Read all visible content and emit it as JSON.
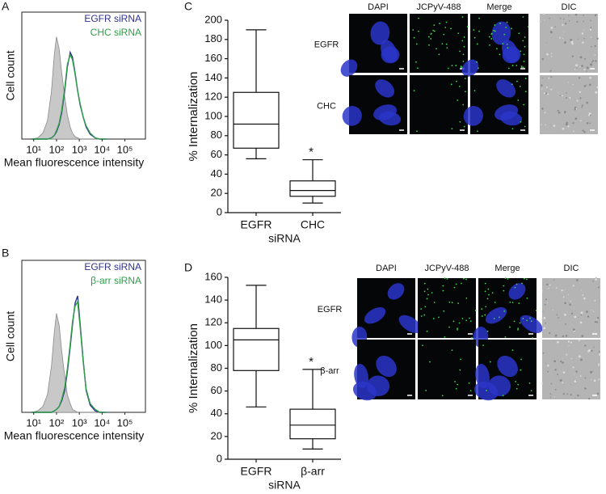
{
  "panel_labels": [
    "A",
    "B",
    "C",
    "D"
  ],
  "chart_data": [
    {
      "type": "histogram_overlay",
      "ylabel": "Cell count",
      "xlabel": "Mean fluorescence intensity",
      "xscale": "log",
      "xlim": [
        3,
        800000
      ],
      "ylim": [
        0,
        100
      ],
      "xticks": [
        {
          "value": 10,
          "label": "10¹"
        },
        {
          "value": 100,
          "label": "10²"
        },
        {
          "value": 1000,
          "label": "10³"
        },
        {
          "value": 10000,
          "label": "10⁴"
        },
        {
          "value": 100000,
          "label": "10⁵"
        }
      ],
      "legend": "upper right",
      "x": [
        8,
        15,
        25,
        40,
        60,
        80,
        100,
        130,
        170,
        230,
        300,
        400,
        500,
        650,
        850,
        1100,
        1500,
        2000,
        3000,
        5000,
        8000,
        15000
      ],
      "series": [
        {
          "color": "#c8c8c8",
          "values": [
            0,
            1,
            5,
            15,
            40,
            70,
            85,
            75,
            55,
            35,
            20,
            10,
            5,
            2,
            1,
            0,
            0,
            0,
            0,
            0,
            0,
            0
          ]
        },
        {
          "name": "EGFR siRNA",
          "color": "#2e3192",
          "values": [
            0,
            0,
            0,
            0,
            1,
            3,
            6,
            12,
            22,
            40,
            60,
            72,
            68,
            55,
            40,
            28,
            18,
            10,
            4,
            1,
            0,
            0
          ]
        },
        {
          "name": "CHC siRNA",
          "color": "#2e9e48",
          "values": [
            0,
            0,
            0,
            0,
            1,
            3,
            7,
            13,
            24,
            42,
            62,
            70,
            66,
            54,
            40,
            29,
            18,
            11,
            5,
            1,
            0,
            0
          ]
        }
      ]
    },
    {
      "type": "histogram_overlay",
      "ylabel": "Cell count",
      "xlabel": "Mean fluorescence intensity",
      "xscale": "log",
      "xlim": [
        3,
        800000
      ],
      "ylim": [
        0,
        100
      ],
      "xticks": [
        {
          "value": 10,
          "label": "10¹"
        },
        {
          "value": 100,
          "label": "10²"
        },
        {
          "value": 1000,
          "label": "10³"
        },
        {
          "value": 10000,
          "label": "10⁴"
        },
        {
          "value": 100000,
          "label": "10⁵"
        }
      ],
      "legend": "upper right",
      "x": [
        8,
        15,
        25,
        40,
        60,
        80,
        100,
        130,
        170,
        230,
        300,
        400,
        500,
        650,
        850,
        1100,
        1500,
        2000,
        3000,
        5000,
        8000,
        15000
      ],
      "series": [
        {
          "color": "#c8c8c8",
          "values": [
            0,
            1,
            4,
            12,
            32,
            55,
            68,
            60,
            42,
            25,
            12,
            6,
            2,
            1,
            0,
            0,
            0,
            0,
            0,
            0,
            0,
            0
          ]
        },
        {
          "name": "EGFR siRNA",
          "color": "#2e3192",
          "values": [
            0,
            0,
            0,
            0,
            0,
            1,
            2,
            4,
            8,
            15,
            28,
            45,
            60,
            75,
            80,
            60,
            35,
            15,
            5,
            1,
            0,
            0
          ]
        },
        {
          "name": "β-arr siRNA",
          "color": "#2e9e48",
          "values": [
            0,
            0,
            0,
            0,
            0,
            1,
            2,
            4,
            9,
            17,
            30,
            47,
            62,
            73,
            76,
            58,
            34,
            16,
            6,
            2,
            0,
            0
          ]
        }
      ]
    },
    {
      "type": "box",
      "ylabel": "% Internalization",
      "xlabel": "siRNA",
      "categories": [
        "EGFR",
        "CHC"
      ],
      "ylim": [
        0,
        200
      ],
      "yticks": [
        0,
        20,
        40,
        60,
        80,
        100,
        120,
        140,
        160,
        180,
        200
      ],
      "boxes": [
        {
          "min": 56,
          "q1": 67,
          "median": 92,
          "q3": 125,
          "max": 190
        },
        {
          "min": 10,
          "q1": 17,
          "median": 23,
          "q3": 33,
          "max": 55
        }
      ],
      "marks_above": [
        null,
        "*"
      ]
    },
    {
      "type": "box",
      "ylabel": "% Internalization",
      "xlabel": "siRNA",
      "categories": [
        "EGFR",
        "β-arr"
      ],
      "ylim": [
        0,
        160
      ],
      "yticks": [
        0,
        20,
        40,
        60,
        80,
        100,
        120,
        140,
        160
      ],
      "boxes": [
        {
          "min": 46,
          "q1": 78,
          "median": 105,
          "q3": 115,
          "max": 153
        },
        {
          "min": 9,
          "q1": 18,
          "median": 30,
          "q3": 44,
          "max": 79
        }
      ],
      "marks_above": [
        null,
        "*"
      ]
    }
  ],
  "image_panels": [
    {
      "columns": [
        "DAPI",
        "JCPyV-488",
        "Merge",
        "DIC"
      ],
      "rows": [
        "EGFR",
        "CHC"
      ]
    },
    {
      "columns": [
        "DAPI",
        "JCPyV-488",
        "Merge",
        "DIC"
      ],
      "rows": [
        "EGFR",
        "β-arr"
      ]
    }
  ]
}
